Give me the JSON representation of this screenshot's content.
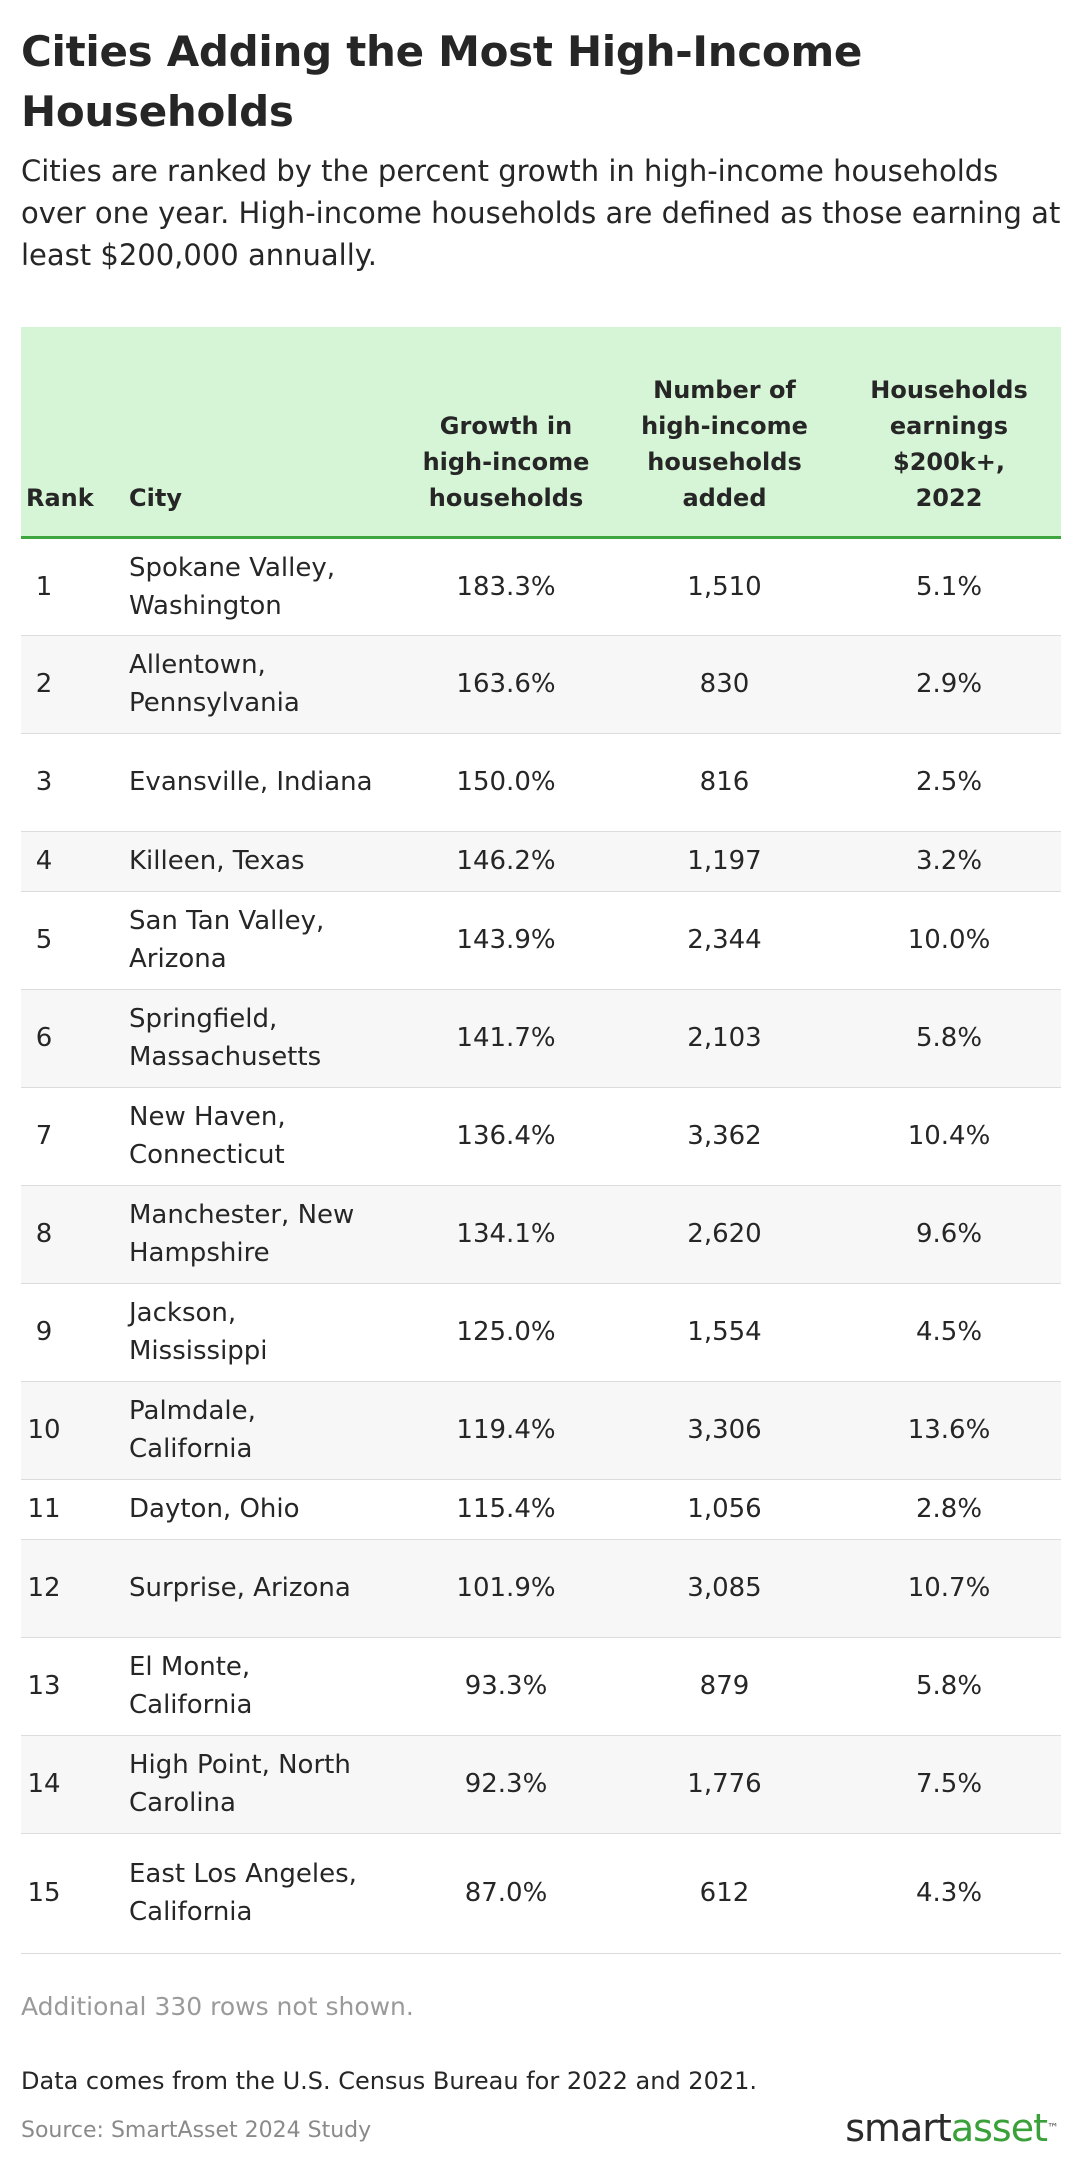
{
  "title": "Cities Adding the Most High-Income Households",
  "subtitle": "Cities are ranked by the percent growth in high-income households over one year. High-income households are defined as those earning at least $200,000 annually.",
  "columns": [
    "Rank",
    "City",
    "Growth in high-income households",
    "Number of high-income households added",
    "Households earnings $200k+, 2022"
  ],
  "chart_data": {
    "type": "table",
    "columns": [
      "Rank",
      "City",
      "Growth in high-income households",
      "Number of high-income households added",
      "Households earnings $200k+, 2022"
    ],
    "rows": [
      {
        "rank": "1",
        "city": "Spokane Valley, Washington",
        "growth": "183.3%",
        "added": "1,510",
        "share": "5.1%"
      },
      {
        "rank": "2",
        "city": "Allentown, Pennsylvania",
        "growth": "163.6%",
        "added": "830",
        "share": "2.9%"
      },
      {
        "rank": "3",
        "city": "Evansville, Indiana",
        "growth": "150.0%",
        "added": "816",
        "share": "2.5%"
      },
      {
        "rank": "4",
        "city": "Killeen, Texas",
        "growth": "146.2%",
        "added": "1,197",
        "share": "3.2%"
      },
      {
        "rank": "5",
        "city": "San Tan Valley, Arizona",
        "growth": "143.9%",
        "added": "2,344",
        "share": "10.0%"
      },
      {
        "rank": "6",
        "city": "Springfield, Massachusetts",
        "growth": "141.7%",
        "added": "2,103",
        "share": "5.8%"
      },
      {
        "rank": "7",
        "city": "New Haven, Connecticut",
        "growth": "136.4%",
        "added": "3,362",
        "share": "10.4%"
      },
      {
        "rank": "8",
        "city": "Manchester, New Hampshire",
        "growth": "134.1%",
        "added": "2,620",
        "share": "9.6%"
      },
      {
        "rank": "9",
        "city": "Jackson, Mississippi",
        "growth": "125.0%",
        "added": "1,554",
        "share": "4.5%"
      },
      {
        "rank": "10",
        "city": "Palmdale, California",
        "growth": "119.4%",
        "added": "3,306",
        "share": "13.6%"
      },
      {
        "rank": "11",
        "city": "Dayton, Ohio",
        "growth": "115.4%",
        "added": "1,056",
        "share": "2.8%"
      },
      {
        "rank": "12",
        "city": "Surprise, Arizona",
        "growth": "101.9%",
        "added": "3,085",
        "share": "10.7%"
      },
      {
        "rank": "13",
        "city": "El Monte, California",
        "growth": "93.3%",
        "added": "879",
        "share": "5.8%"
      },
      {
        "rank": "14",
        "city": "High Point, North Carolina",
        "growth": "92.3%",
        "added": "1,776",
        "share": "7.5%"
      },
      {
        "rank": "15",
        "city": "East Los Angeles, California",
        "growth": "87.0%",
        "added": "612",
        "share": "4.3%"
      }
    ]
  },
  "note": "Additional 330 rows not shown.",
  "footnote": "Data comes from the U.S. Census Bureau for 2022 and 2021.",
  "source": "Source: SmartAsset 2024 Study",
  "logo": {
    "part1": "smart",
    "part2": "asset",
    "tm": "™"
  },
  "colors": {
    "header_bg": "#d6f5d6",
    "header_rule": "#3ea63e",
    "stripe": "#f7f7f7",
    "brand_green": "#3aa03a"
  }
}
